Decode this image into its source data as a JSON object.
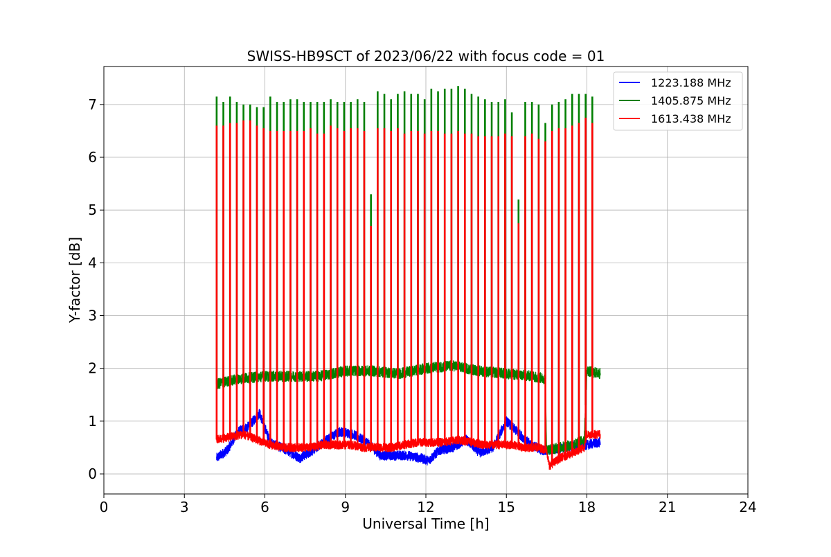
{
  "chart_data": {
    "type": "line",
    "title": "SWISS-HB9SCT of 2023/06/22 with focus code = 01",
    "xlabel": "Universal Time [h]",
    "ylabel": "Y-factor [dB]",
    "xlim": [
      0,
      24
    ],
    "ylim": [
      -0.38,
      7.72
    ],
    "x_ticks": [
      0,
      3,
      6,
      9,
      12,
      15,
      18,
      21,
      24
    ],
    "y_ticks": [
      0,
      1,
      2,
      3,
      4,
      5,
      6,
      7
    ],
    "grid": true,
    "legend_position": "top-right",
    "spike_times": [
      4.2,
      4.45,
      4.7,
      4.95,
      5.2,
      5.45,
      5.7,
      5.95,
      6.2,
      6.45,
      6.7,
      6.95,
      7.2,
      7.45,
      7.7,
      7.95,
      8.2,
      8.45,
      8.7,
      8.95,
      9.2,
      9.45,
      9.7,
      9.95,
      10.2,
      10.45,
      10.7,
      10.95,
      11.2,
      11.45,
      11.7,
      11.95,
      12.2,
      12.45,
      12.7,
      12.95,
      13.2,
      13.45,
      13.7,
      13.95,
      14.2,
      14.45,
      14.7,
      14.95,
      15.2,
      15.45,
      15.7,
      15.95,
      16.2,
      16.45,
      16.7,
      16.95,
      17.2,
      17.45,
      17.7,
      17.95,
      18.2
    ],
    "series": [
      {
        "name": "1223.188 MHz",
        "color": "#0000ff",
        "baseline": [
          [
            4.2,
            0.3
          ],
          [
            4.6,
            0.45
          ],
          [
            5.0,
            0.8
          ],
          [
            5.4,
            0.9
          ],
          [
            5.8,
            1.15
          ],
          [
            6.2,
            0.6
          ],
          [
            6.8,
            0.45
          ],
          [
            7.3,
            0.3
          ],
          [
            7.8,
            0.45
          ],
          [
            8.3,
            0.65
          ],
          [
            8.8,
            0.8
          ],
          [
            9.3,
            0.75
          ],
          [
            9.8,
            0.6
          ],
          [
            10.3,
            0.35
          ],
          [
            10.8,
            0.35
          ],
          [
            11.3,
            0.35
          ],
          [
            11.8,
            0.3
          ],
          [
            12.1,
            0.25
          ],
          [
            12.5,
            0.45
          ],
          [
            13.0,
            0.5
          ],
          [
            13.5,
            0.65
          ],
          [
            14.0,
            0.4
          ],
          [
            14.5,
            0.5
          ],
          [
            15.0,
            1.0
          ],
          [
            15.4,
            0.8
          ],
          [
            15.8,
            0.6
          ],
          [
            16.3,
            0.45
          ],
          [
            16.7,
            0.45
          ],
          [
            17.2,
            0.5
          ],
          [
            17.6,
            0.55
          ],
          [
            18.0,
            0.55
          ],
          [
            18.5,
            0.6
          ]
        ],
        "spike_values": []
      },
      {
        "name": "1405.875 MHz",
        "color": "#007f00",
        "baseline": [
          [
            4.2,
            1.7
          ],
          [
            5.0,
            1.8
          ],
          [
            6.0,
            1.85
          ],
          [
            7.0,
            1.85
          ],
          [
            8.0,
            1.85
          ],
          [
            9.0,
            1.95
          ],
          [
            10.0,
            1.95
          ],
          [
            11.0,
            1.9
          ],
          [
            12.0,
            2.0
          ],
          [
            13.0,
            2.05
          ],
          [
            14.0,
            1.95
          ],
          [
            15.0,
            1.9
          ],
          [
            16.0,
            1.85
          ],
          [
            16.45,
            1.8
          ],
          [
            16.5,
            0.45
          ],
          [
            17.0,
            0.5
          ],
          [
            17.5,
            0.55
          ],
          [
            17.9,
            0.65
          ],
          [
            18.0,
            1.95
          ],
          [
            18.5,
            1.9
          ]
        ],
        "spike_values": [
          7.15,
          7.05,
          7.15,
          7.05,
          7.0,
          7.0,
          6.95,
          6.95,
          7.15,
          7.05,
          7.05,
          7.1,
          7.1,
          7.05,
          7.05,
          7.05,
          7.05,
          7.1,
          7.05,
          7.05,
          7.05,
          7.1,
          7.05,
          5.3,
          7.25,
          7.2,
          7.1,
          7.2,
          7.25,
          7.2,
          7.2,
          7.1,
          7.3,
          7.25,
          7.3,
          7.3,
          7.35,
          7.3,
          7.2,
          7.15,
          7.1,
          7.05,
          7.05,
          7.1,
          6.85,
          5.2,
          7.05,
          7.05,
          7.0,
          6.65,
          7.0,
          7.05,
          7.1,
          7.2,
          7.2,
          7.2,
          7.15
        ]
      },
      {
        "name": "1613.438 MHz",
        "color": "#ff0000",
        "baseline": [
          [
            4.2,
            0.65
          ],
          [
            4.7,
            0.7
          ],
          [
            5.2,
            0.75
          ],
          [
            5.7,
            0.65
          ],
          [
            6.2,
            0.55
          ],
          [
            6.7,
            0.5
          ],
          [
            7.2,
            0.5
          ],
          [
            7.7,
            0.5
          ],
          [
            8.2,
            0.55
          ],
          [
            8.7,
            0.55
          ],
          [
            9.2,
            0.55
          ],
          [
            9.7,
            0.5
          ],
          [
            10.2,
            0.5
          ],
          [
            10.7,
            0.5
          ],
          [
            11.2,
            0.55
          ],
          [
            11.7,
            0.6
          ],
          [
            12.2,
            0.6
          ],
          [
            12.7,
            0.6
          ],
          [
            13.2,
            0.65
          ],
          [
            13.7,
            0.6
          ],
          [
            14.2,
            0.55
          ],
          [
            14.7,
            0.55
          ],
          [
            15.2,
            0.55
          ],
          [
            15.7,
            0.5
          ],
          [
            16.2,
            0.5
          ],
          [
            16.5,
            0.45
          ],
          [
            16.6,
            0.15
          ],
          [
            17.0,
            0.3
          ],
          [
            17.5,
            0.4
          ],
          [
            17.9,
            0.5
          ],
          [
            18.0,
            0.75
          ],
          [
            18.5,
            0.75
          ]
        ],
        "spike_values": [
          6.6,
          6.6,
          6.65,
          6.65,
          6.7,
          6.7,
          6.6,
          6.55,
          6.5,
          6.5,
          6.5,
          6.5,
          6.5,
          6.5,
          6.55,
          6.45,
          6.45,
          6.6,
          6.55,
          6.5,
          6.55,
          6.55,
          6.5,
          4.7,
          6.55,
          6.55,
          6.5,
          6.55,
          6.45,
          6.5,
          6.5,
          6.45,
          6.5,
          6.5,
          6.45,
          6.45,
          6.5,
          6.45,
          6.45,
          6.4,
          6.4,
          6.4,
          6.4,
          6.45,
          6.4,
          4.75,
          6.4,
          6.45,
          6.35,
          6.3,
          6.5,
          6.55,
          6.55,
          6.6,
          6.65,
          6.75,
          6.65
        ]
      }
    ]
  }
}
